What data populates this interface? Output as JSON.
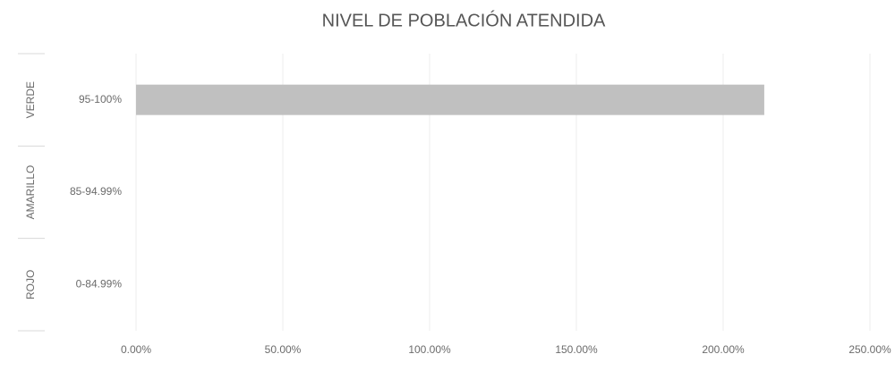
{
  "chart_data": {
    "type": "bar",
    "orientation": "horizontal",
    "title": "NIVEL DE POBLACIÓN ATENDIDA",
    "groups": [
      "VERDE",
      "AMARILLO",
      "ROJO"
    ],
    "categories": [
      "95-100%",
      "85-94.99%",
      "0-84.99%"
    ],
    "values": [
      214,
      0,
      0
    ],
    "color": "#c0c0c0",
    "xlim": [
      0,
      250
    ],
    "xticks": [
      {
        "value": 0,
        "label": "0.00%"
      },
      {
        "value": 50,
        "label": "50.00%"
      },
      {
        "value": 100,
        "label": "100.00%"
      },
      {
        "value": 150,
        "label": "150.00%"
      },
      {
        "value": 200,
        "label": "200.00%"
      },
      {
        "value": 250,
        "label": "250.00%"
      }
    ],
    "grid": true
  }
}
